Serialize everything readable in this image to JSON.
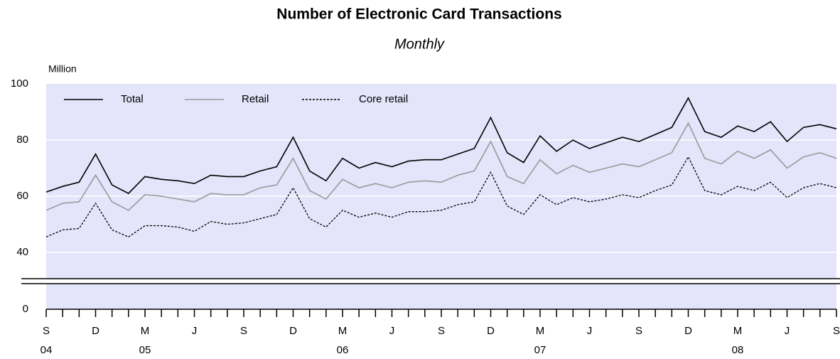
{
  "chart_data": {
    "type": "line",
    "title": "Number of Electronic Card Transactions",
    "subtitle": "Monthly",
    "y_label": "Million",
    "categories": [
      "S",
      null,
      null,
      "D",
      null,
      null,
      "M",
      null,
      null,
      "J",
      null,
      null,
      "S",
      null,
      null,
      "D",
      null,
      null,
      "M",
      null,
      null,
      "J",
      null,
      null,
      "S",
      null,
      null,
      "D",
      null,
      null,
      "M",
      null,
      null,
      "J",
      null,
      null,
      "S",
      null,
      null,
      "D",
      null,
      null,
      "M",
      null,
      null,
      "J",
      null,
      null,
      "S"
    ],
    "years": [
      "04",
      null,
      null,
      null,
      null,
      null,
      "05",
      null,
      null,
      null,
      null,
      null,
      null,
      null,
      null,
      null,
      null,
      null,
      "06",
      null,
      null,
      null,
      null,
      null,
      null,
      null,
      null,
      null,
      null,
      null,
      "07",
      null,
      null,
      null,
      null,
      null,
      null,
      null,
      null,
      null,
      null,
      null,
      "08",
      null,
      null,
      null,
      null,
      null,
      null
    ],
    "series": [
      {
        "name": "Total",
        "color": "#000000",
        "style": "solid",
        "values": [
          61.5,
          63.5,
          65,
          75,
          64,
          61,
          67,
          66,
          65.5,
          64.5,
          67.5,
          67,
          67,
          69,
          70.5,
          81,
          69,
          65.5,
          73.5,
          70,
          72,
          70.5,
          72.5,
          73,
          73,
          75,
          77,
          88,
          75.5,
          72,
          81.5,
          76,
          80,
          77,
          79,
          81,
          79.5,
          82,
          84.5,
          95,
          83,
          81,
          85,
          83,
          86.5,
          79.5,
          84.5,
          85.5,
          84
        ]
      },
      {
        "name": "Retail",
        "color": "#999999",
        "style": "solid",
        "values": [
          55,
          57.5,
          58,
          67.5,
          58,
          55,
          60.5,
          60,
          59,
          58,
          61,
          60.5,
          60.5,
          63,
          64,
          73.5,
          62,
          59,
          66,
          63,
          64.5,
          63,
          65,
          65.5,
          65,
          67.5,
          69,
          79.5,
          67,
          64.5,
          73,
          68,
          71,
          68.5,
          70,
          71.5,
          70.5,
          73,
          75.5,
          86,
          73.5,
          71.5,
          76,
          73.5,
          76.5,
          70,
          74,
          75.5,
          73.5
        ]
      },
      {
        "name": "Core retail",
        "color": "#000000",
        "style": "dotted",
        "values": [
          45.5,
          48,
          48.5,
          57.5,
          48,
          45.5,
          49.5,
          49.5,
          49,
          47.5,
          51,
          50,
          50.5,
          52,
          53.5,
          63,
          52,
          49,
          55,
          52.5,
          54,
          52.5,
          54.5,
          54.5,
          55,
          57,
          58,
          68.5,
          56.5,
          53.5,
          60.5,
          57,
          59.5,
          58,
          59,
          60.5,
          59.5,
          62,
          64,
          74,
          62,
          60.5,
          63.5,
          62,
          65,
          59.5,
          63,
          64.5,
          63
        ]
      }
    ],
    "ylim": [
      0,
      100
    ],
    "yticks": [
      0,
      40,
      60,
      80,
      100
    ],
    "y_axis_break": true,
    "grid": true,
    "legend": "top-left"
  }
}
